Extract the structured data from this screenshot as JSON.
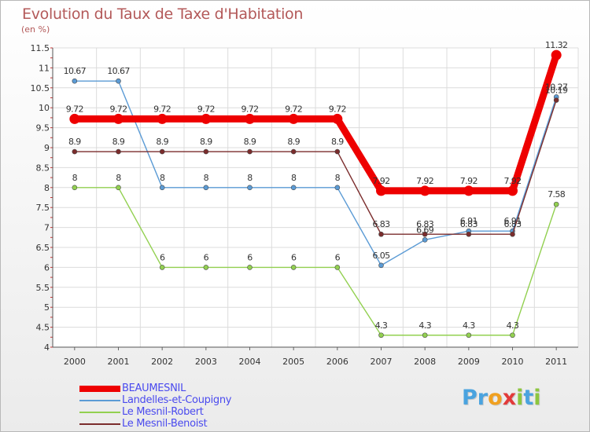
{
  "chart_data": {
    "type": "line",
    "title": "Evolution du Taux de Taxe d'Habitation",
    "unit_label": "(en %)",
    "x": [
      "2000",
      "2001",
      "2002",
      "2003",
      "2004",
      "2005",
      "2006",
      "2007",
      "2008",
      "2009",
      "2010",
      "2011"
    ],
    "ylim": [
      4,
      11.5
    ],
    "yticks": [
      4,
      4.5,
      5,
      5.5,
      6,
      6.5,
      7,
      7.5,
      8,
      8.5,
      9,
      9.5,
      10,
      10.5,
      11,
      11.5
    ],
    "ytick_labels": [
      "4",
      "4.5",
      "5",
      "5.5",
      "6",
      "6.5",
      "7",
      "7.5",
      "8",
      "8.5",
      "9",
      "9.5",
      "10",
      "10.5",
      "11",
      "11.5"
    ],
    "grid": true,
    "legend_position": "bottom-left",
    "series": [
      {
        "name": "BEAUMESNIL",
        "color": "#ee0000",
        "values": [
          9.72,
          9.72,
          9.72,
          9.72,
          9.72,
          9.72,
          9.72,
          7.92,
          7.92,
          7.92,
          7.92,
          11.32
        ],
        "labels": [
          "9.72",
          "9.72",
          "9.72",
          "9.72",
          "9.72",
          "9.72",
          "9.72",
          "7.92",
          "7.92",
          "7.92",
          "7.92",
          "11.32"
        ]
      },
      {
        "name": "Landelles-et-Coupigny",
        "color": "#5b9bd5",
        "values": [
          10.67,
          10.67,
          8,
          8,
          8,
          8,
          8,
          6.05,
          6.69,
          6.91,
          6.91,
          10.27
        ],
        "labels": [
          "10.67",
          "10.67",
          "8",
          "8",
          "8",
          "8",
          "8",
          "6.05",
          "6.69",
          "6.91",
          "6.91",
          "10.27"
        ]
      },
      {
        "name": "Le Mesnil-Robert",
        "color": "#92d050",
        "values": [
          8,
          8,
          6,
          6,
          6,
          6,
          6,
          4.3,
          4.3,
          4.3,
          4.3,
          7.58
        ],
        "labels": [
          "8",
          "8",
          "6",
          "6",
          "6",
          "6",
          "6",
          "4.3",
          "4.3",
          "4.3",
          "4.3",
          "7.58"
        ]
      },
      {
        "name": "Le Mesnil-Benoist",
        "color": "#7b2c2c",
        "values": [
          8.9,
          8.9,
          8.9,
          8.9,
          8.9,
          8.9,
          8.9,
          6.83,
          6.83,
          6.83,
          6.83,
          10.19
        ],
        "labels": [
          "8.9",
          "8.9",
          "8.9",
          "8.9",
          "8.9",
          "8.9",
          "8.9",
          "6.83",
          "6.83",
          "6.83",
          "6.83",
          "10.19"
        ]
      }
    ]
  },
  "legend": [
    {
      "label": "BEAUMESNIL"
    },
    {
      "label": "Landelles-et-Coupigny"
    },
    {
      "label": "Le Mesnil-Robert"
    },
    {
      "label": "Le Mesnil-Benoist"
    }
  ],
  "logo": {
    "letters": [
      "P",
      "r",
      "o",
      "x",
      "i",
      "t",
      "i"
    ],
    "colors": [
      "#4aa3df",
      "#4aa3df",
      "#f0a020",
      "#e23a3a",
      "#8dc63f",
      "#4aa3df",
      "#8dc63f"
    ]
  }
}
